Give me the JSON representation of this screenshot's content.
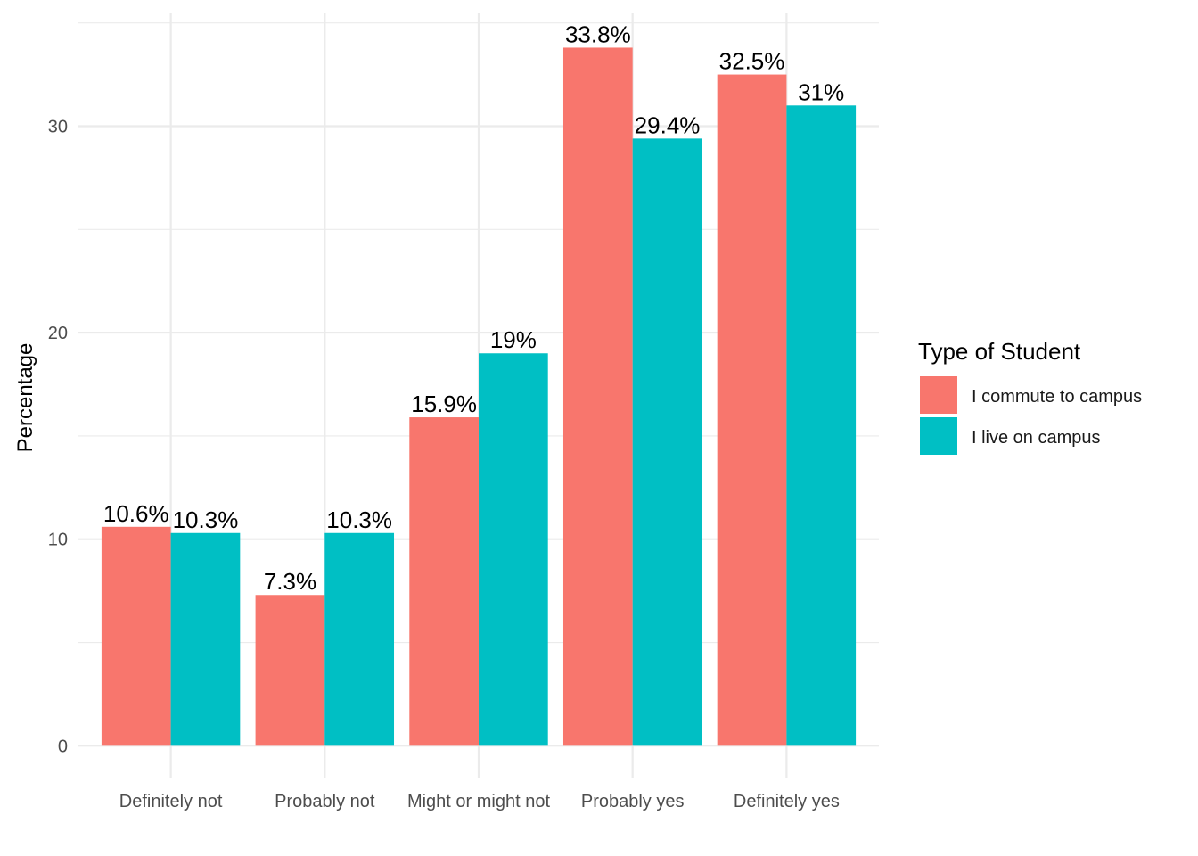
{
  "chart_data": {
    "type": "bar",
    "title": "",
    "xlabel": "",
    "ylabel": "Percentage",
    "categories": [
      "Definitely not",
      "Probably not",
      "Might or might not",
      "Probably yes",
      "Definitely yes"
    ],
    "series": [
      {
        "name": "I commute to campus",
        "color": "#F8766D",
        "values": [
          10.6,
          7.3,
          15.9,
          33.8,
          32.5
        ],
        "labels": [
          "10.6%",
          "7.3%",
          "15.9%",
          "33.8%",
          "32.5%"
        ]
      },
      {
        "name": "I live on campus",
        "color": "#00BFC4",
        "values": [
          10.3,
          10.3,
          19,
          29.4,
          31
        ],
        "labels": [
          "10.3%",
          "10.3%",
          "19%",
          "29.4%",
          "31%"
        ]
      }
    ],
    "ylim": [
      -1.54,
      35.46
    ],
    "yticks": [
      0,
      10,
      20,
      30
    ],
    "ytick_labels": [
      "0",
      "10",
      "20",
      "30"
    ],
    "grid": true,
    "legend": {
      "title": "Type of Student",
      "placement": "right"
    }
  }
}
